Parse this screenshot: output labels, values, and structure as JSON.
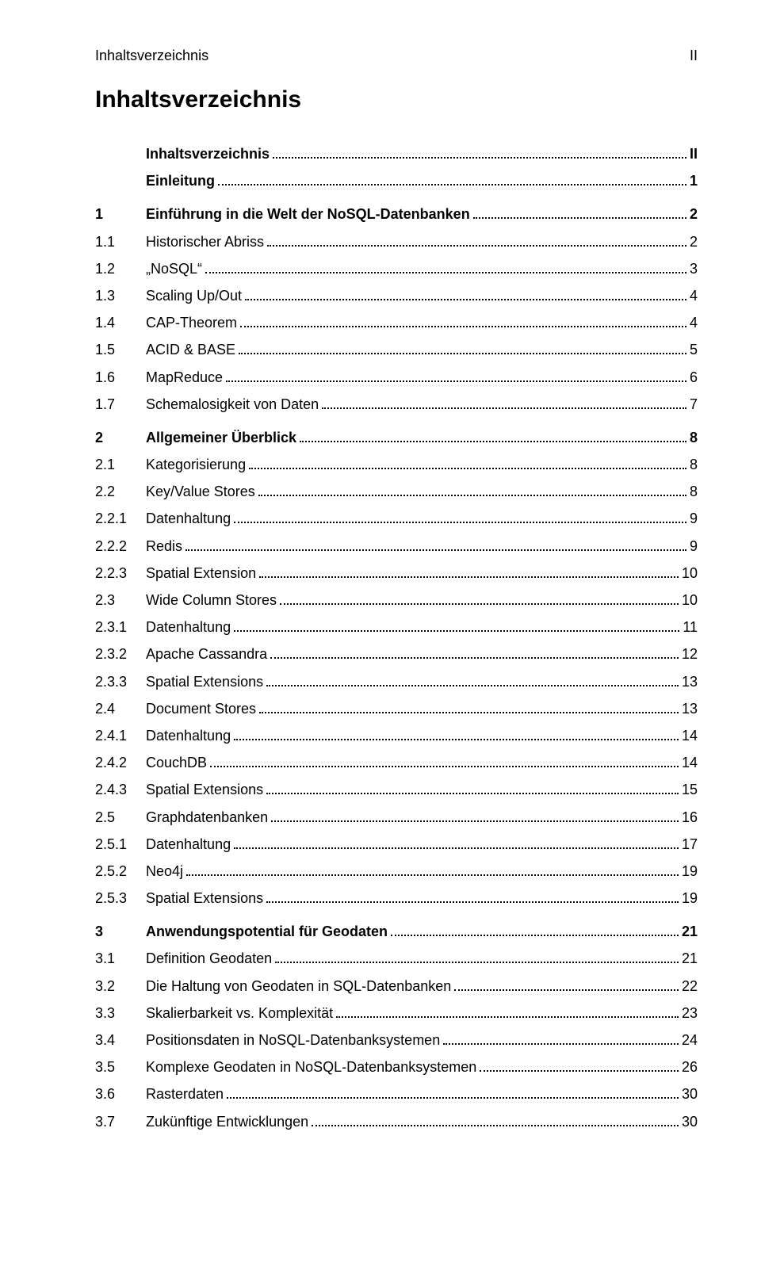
{
  "header": {
    "left": "Inhaltsverzeichnis",
    "right": "II"
  },
  "title": "Inhaltsverzeichnis",
  "entries": [
    {
      "num": "",
      "title": "Inhaltsverzeichnis",
      "page": "II",
      "bold": true,
      "gap": false
    },
    {
      "num": "",
      "title": "Einleitung",
      "page": "1",
      "bold": true,
      "gap": false
    },
    {
      "num": "1",
      "title": "Einführung in die Welt der NoSQL-Datenbanken",
      "page": "2",
      "bold": true,
      "gap": true
    },
    {
      "num": "1.1",
      "title": "Historischer Abriss",
      "page": "2",
      "bold": false,
      "gap": false
    },
    {
      "num": "1.2",
      "title": "„NoSQL“",
      "page": "3",
      "bold": false,
      "gap": false
    },
    {
      "num": "1.3",
      "title": "Scaling Up/Out",
      "page": "4",
      "bold": false,
      "gap": false
    },
    {
      "num": "1.4",
      "title": "CAP-Theorem",
      "page": "4",
      "bold": false,
      "gap": false
    },
    {
      "num": "1.5",
      "title": "ACID & BASE",
      "page": "5",
      "bold": false,
      "gap": false
    },
    {
      "num": "1.6",
      "title": "MapReduce",
      "page": "6",
      "bold": false,
      "gap": false
    },
    {
      "num": "1.7",
      "title": "Schemalosigkeit von Daten",
      "page": "7",
      "bold": false,
      "gap": false
    },
    {
      "num": "2",
      "title": "Allgemeiner Überblick",
      "page": "8",
      "bold": true,
      "gap": true
    },
    {
      "num": "2.1",
      "title": "Kategorisierung",
      "page": "8",
      "bold": false,
      "gap": false
    },
    {
      "num": "2.2",
      "title": "Key/Value Stores",
      "page": "8",
      "bold": false,
      "gap": false
    },
    {
      "num": "2.2.1",
      "title": "Datenhaltung",
      "page": "9",
      "bold": false,
      "gap": false
    },
    {
      "num": "2.2.2",
      "title": "Redis",
      "page": "9",
      "bold": false,
      "gap": false
    },
    {
      "num": "2.2.3",
      "title": "Spatial Extension",
      "page": "10",
      "bold": false,
      "gap": false
    },
    {
      "num": "2.3",
      "title": "Wide Column Stores",
      "page": "10",
      "bold": false,
      "gap": false
    },
    {
      "num": "2.3.1",
      "title": "Datenhaltung",
      "page": "11",
      "bold": false,
      "gap": false
    },
    {
      "num": "2.3.2",
      "title": "Apache Cassandra",
      "page": "12",
      "bold": false,
      "gap": false
    },
    {
      "num": "2.3.3",
      "title": "Spatial Extensions",
      "page": "13",
      "bold": false,
      "gap": false
    },
    {
      "num": "2.4",
      "title": "Document Stores",
      "page": "13",
      "bold": false,
      "gap": false
    },
    {
      "num": "2.4.1",
      "title": "Datenhaltung",
      "page": "14",
      "bold": false,
      "gap": false
    },
    {
      "num": "2.4.2",
      "title": "CouchDB",
      "page": "14",
      "bold": false,
      "gap": false
    },
    {
      "num": "2.4.3",
      "title": "Spatial Extensions",
      "page": "15",
      "bold": false,
      "gap": false
    },
    {
      "num": "2.5",
      "title": "Graphdatenbanken",
      "page": "16",
      "bold": false,
      "gap": false
    },
    {
      "num": "2.5.1",
      "title": "Datenhaltung",
      "page": "17",
      "bold": false,
      "gap": false
    },
    {
      "num": "2.5.2",
      "title": "Neo4j",
      "page": "19",
      "bold": false,
      "gap": false
    },
    {
      "num": "2.5.3",
      "title": "Spatial Extensions",
      "page": "19",
      "bold": false,
      "gap": false
    },
    {
      "num": "3",
      "title": "Anwendungspotential für Geodaten",
      "page": "21",
      "bold": true,
      "gap": true
    },
    {
      "num": "3.1",
      "title": "Definition Geodaten",
      "page": "21",
      "bold": false,
      "gap": false
    },
    {
      "num": "3.2",
      "title": "Die Haltung von Geodaten in SQL-Datenbanken",
      "page": "22",
      "bold": false,
      "gap": false
    },
    {
      "num": "3.3",
      "title": "Skalierbarkeit vs. Komplexität",
      "page": "23",
      "bold": false,
      "gap": false
    },
    {
      "num": "3.4",
      "title": "Positionsdaten in NoSQL-Datenbanksystemen",
      "page": "24",
      "bold": false,
      "gap": false
    },
    {
      "num": "3.5",
      "title": "Komplexe Geodaten in NoSQL-Datenbanksystemen",
      "page": "26",
      "bold": false,
      "gap": false
    },
    {
      "num": "3.6",
      "title": "Rasterdaten",
      "page": "30",
      "bold": false,
      "gap": false
    },
    {
      "num": "3.7",
      "title": "Zukünftige Entwicklungen",
      "page": "30",
      "bold": false,
      "gap": false
    }
  ]
}
